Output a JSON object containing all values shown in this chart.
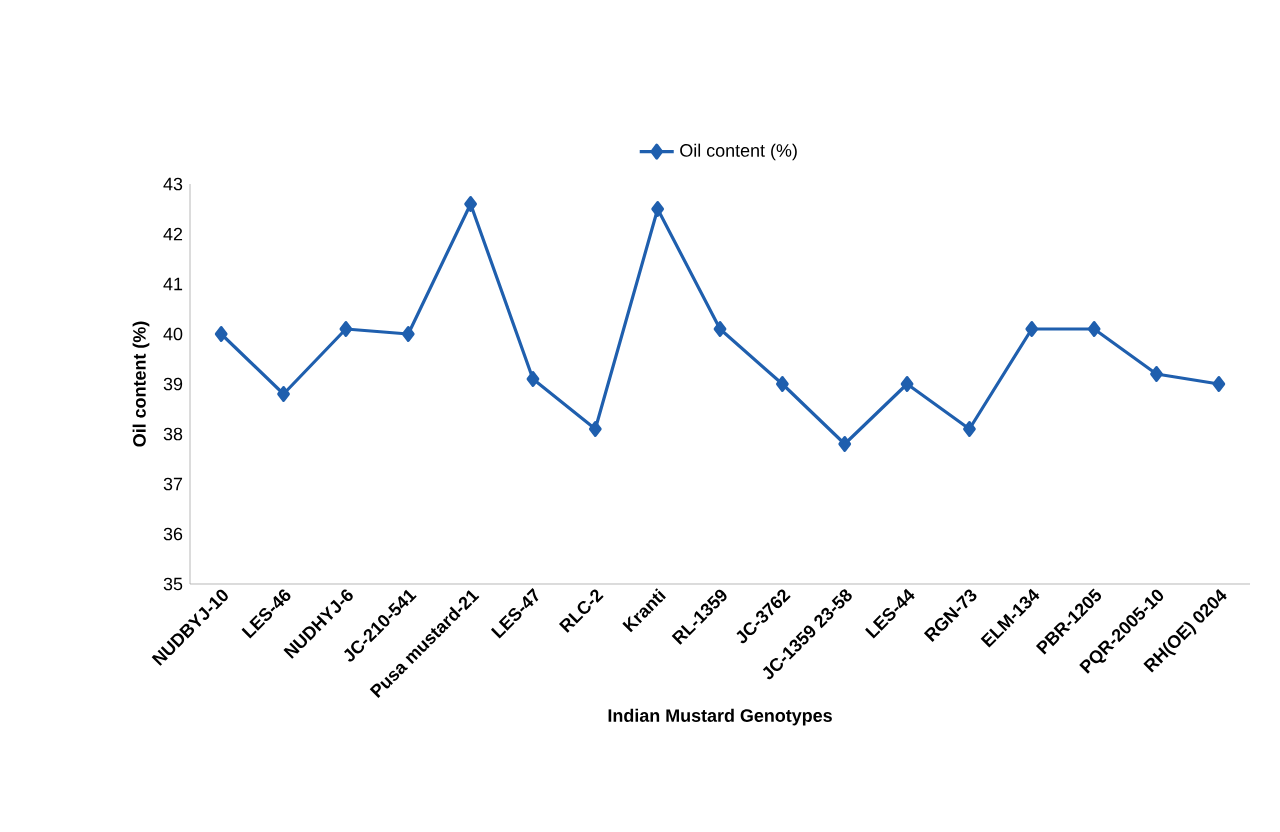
{
  "chart_data": {
    "type": "line",
    "xlabel": "Indian Mustard Genotypes",
    "ylabel": "Oil content (%)",
    "categories": [
      "NUDBYJ-10",
      "LES-46",
      "NUDHYJ-6",
      "JC-210-541",
      "Pusa mustard-21",
      "LES-47",
      "RLC-2",
      "Kranti",
      "RL-1359",
      "JC-3762",
      "JC-1359 23-58",
      "LES-44",
      "RGN-73",
      "ELM-134",
      "PBR-1205",
      "PQR-2005-10",
      "RH(OE) 0204"
    ],
    "series": [
      {
        "name": "Oil content (%)",
        "color": "#1f5fae",
        "values": [
          40.0,
          38.8,
          40.1,
          40.0,
          42.6,
          39.1,
          38.1,
          42.5,
          40.1,
          39.0,
          37.8,
          39.0,
          38.1,
          40.1,
          40.1,
          39.2,
          39.0
        ]
      }
    ],
    "ylim": [
      35,
      43
    ],
    "yticks": [
      35,
      36,
      37,
      38,
      39,
      40,
      41,
      42,
      43
    ],
    "legend": "top",
    "marker": "diamond",
    "line_style": "solid",
    "grid": false
  }
}
